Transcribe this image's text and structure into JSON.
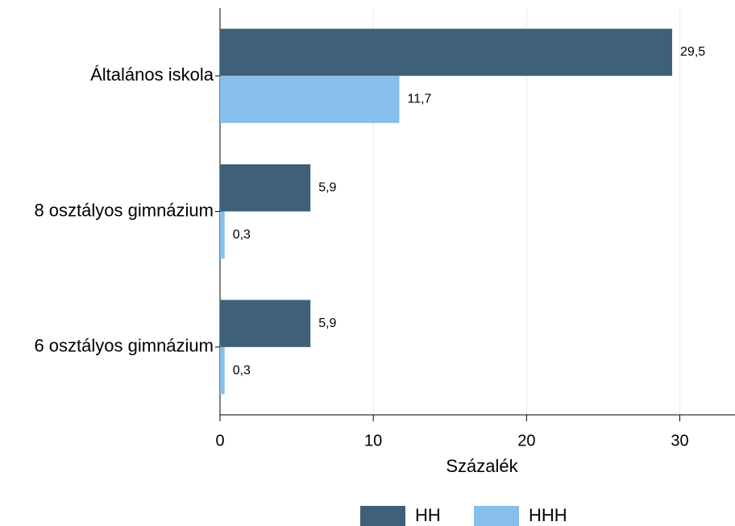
{
  "chart_data": {
    "type": "bar",
    "orientation": "horizontal",
    "categories": [
      "Általános iskola",
      "8 osztályos gimnázium",
      "6 osztályos gimnázium"
    ],
    "series": [
      {
        "name": "HH",
        "color": "#3e6079",
        "values": [
          29.5,
          5.9,
          5.9
        ],
        "value_labels": [
          "29,5",
          "5,9",
          "5,9"
        ]
      },
      {
        "name": "HHH",
        "color": "#85bfea",
        "values": [
          11.7,
          0.3,
          0.3
        ],
        "value_labels": [
          "11,7",
          "0,3",
          "0,3"
        ]
      }
    ],
    "xlabel": "Százalék",
    "xlim": [
      0,
      33.6
    ],
    "xticks": [
      0,
      10,
      20,
      30
    ],
    "grid": true,
    "legend": "bottom"
  }
}
